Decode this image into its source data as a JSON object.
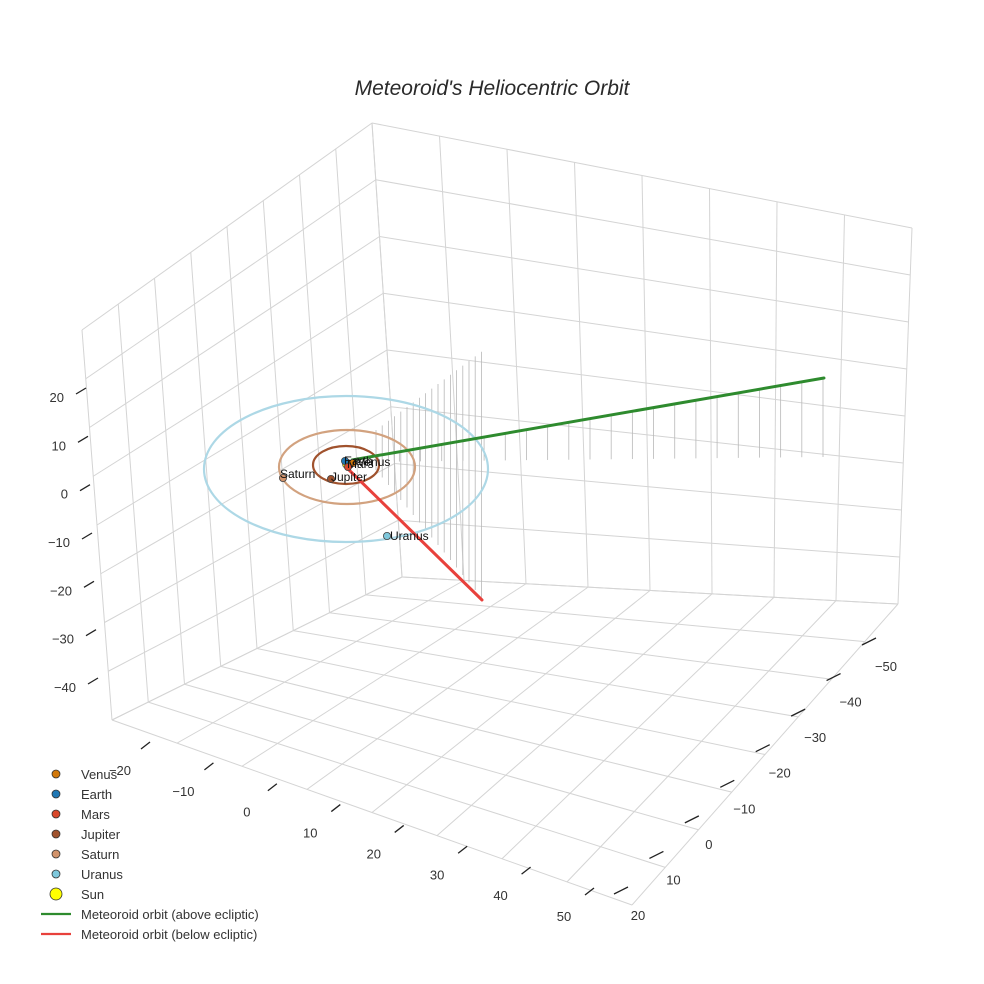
{
  "chart_data": {
    "type": "scatter3d",
    "title": "Meteoroid's Heliocentric Orbit",
    "axes": {
      "x": {
        "ticks": [
          "−20",
          "−10",
          "0",
          "10",
          "20",
          "30",
          "40",
          "50"
        ]
      },
      "y": {
        "ticks": [
          "−50",
          "−40",
          "−30",
          "−20",
          "−10",
          "0",
          "10",
          "20"
        ]
      },
      "z": {
        "ticks": [
          "20",
          "10",
          "0",
          "−10",
          "−20",
          "−30",
          "−40"
        ]
      }
    },
    "planets": [
      {
        "name": "Venus",
        "color": "#d2780a",
        "label": "Venus"
      },
      {
        "name": "Earth",
        "color": "#1f77b4",
        "label": "Earth"
      },
      {
        "name": "Mars",
        "color": "#d9482b",
        "label": "Mars"
      },
      {
        "name": "Jupiter",
        "color": "#a0522d",
        "label": "Jupiter"
      },
      {
        "name": "Saturn",
        "color": "#d2936b",
        "label": "Saturn"
      },
      {
        "name": "Uranus",
        "color": "#7ec8dc",
        "label": "Uranus"
      }
    ],
    "orbits": [
      {
        "name": "Jupiter orbit",
        "color": "#a0522d"
      },
      {
        "name": "Saturn orbit",
        "color": "#d2a27f"
      },
      {
        "name": "Uranus orbit",
        "color": "#add8e6"
      }
    ],
    "sun": {
      "name": "Sun",
      "color": "#ffff00"
    },
    "series": [
      {
        "name": "Meteoroid orbit (above ecliptic)",
        "color": "#2e8b2e"
      },
      {
        "name": "Meteoroid orbit (below ecliptic)",
        "color": "#e8413c"
      }
    ],
    "legend": {
      "position": "bottom-left",
      "entries": [
        "Venus",
        "Earth",
        "Mars",
        "Jupiter",
        "Saturn",
        "Uranus",
        "Sun",
        "Meteoroid orbit (above ecliptic)",
        "Meteoroid orbit (below ecliptic)"
      ]
    }
  }
}
